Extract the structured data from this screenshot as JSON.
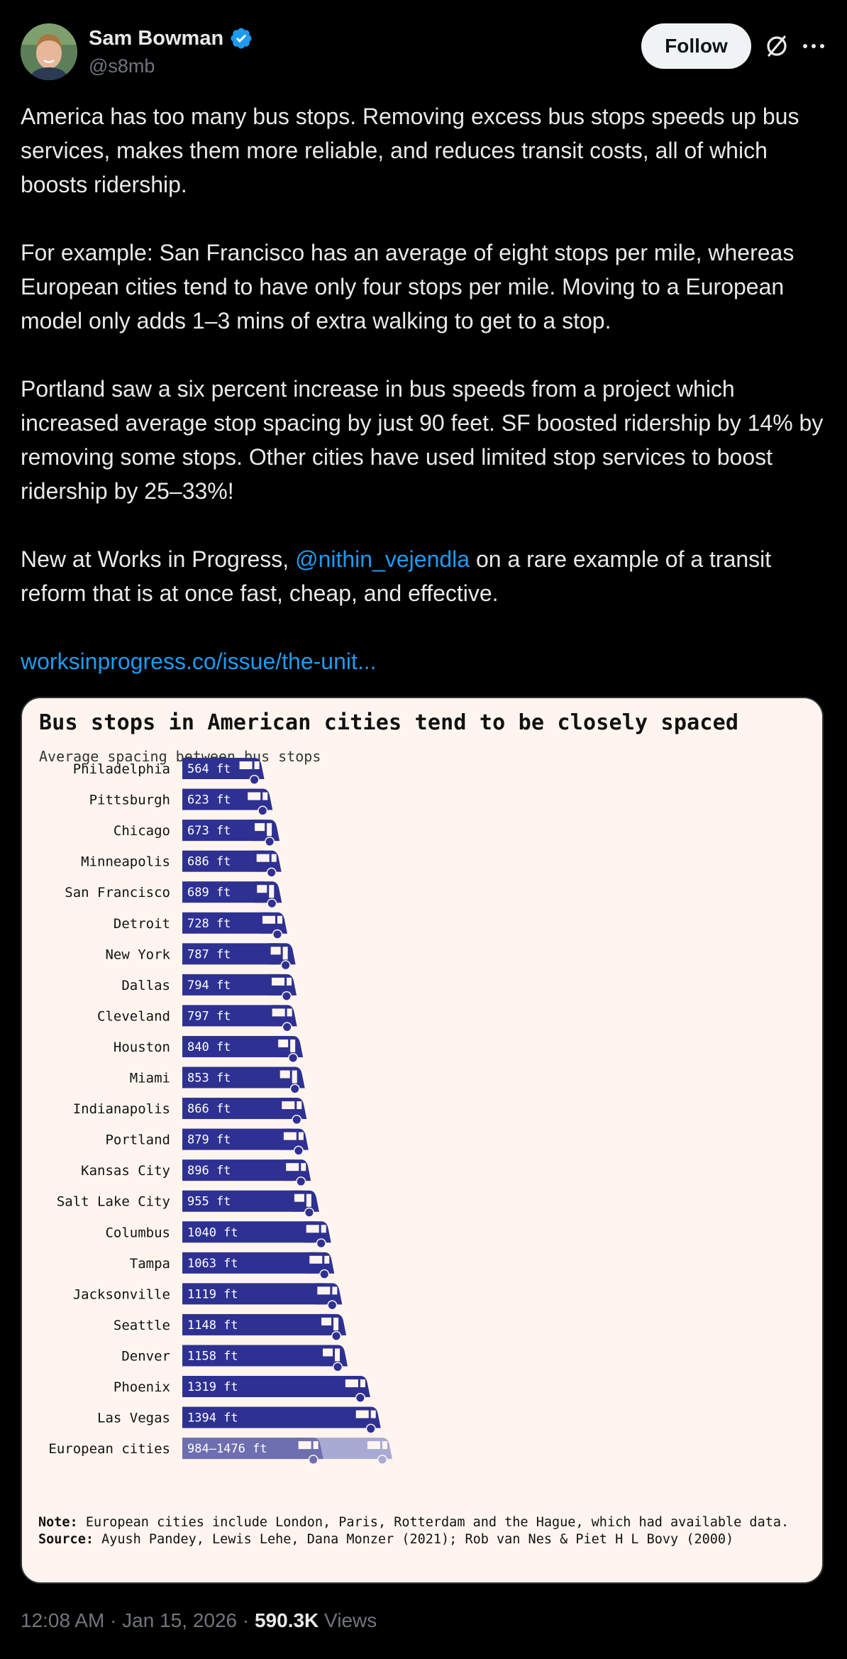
{
  "author": {
    "name": "Sam Bowman",
    "handle": "@s8mb",
    "verified_color": "#1d9bf0"
  },
  "actions": {
    "follow_label": "Follow",
    "grok_icon": "grok-icon",
    "more_icon": "more-icon"
  },
  "tweet": {
    "p1": "America has too many bus stops. Removing excess bus stops speeds up bus services, makes them more reliable, and reduces transit costs, all of which boosts ridership.",
    "p2": "For example: San Francisco has an average of eight stops per mile, whereas European cities tend to have only four stops per mile. Moving to a European model only adds 1–3 mins of extra walking to get to a stop.",
    "p3": "Portland saw a six percent increase in bus speeds from a project which increased average stop spacing by just 90 feet. SF boosted ridership by 14% by removing some stops. Other cities have used limited stop services to boost ridership by 25–33%!",
    "p4_before": "New at Works in Progress, ",
    "p4_mention": "@nithin_vejendla",
    "p4_after": " on a rare example of a transit reform that is at once fast, cheap, and effective.",
    "link": "worksinprogress.co/issue/the-unit..."
  },
  "chart_data": {
    "type": "bar",
    "title": "Bus stops in American cities tend to be closely spaced",
    "subtitle": "Average spacing between bus stops",
    "unit": "ft",
    "bar_color": "#2e3192",
    "range_color": "#6e6fb0",
    "range_light_color": "#a9aad4",
    "categories": [
      "Philadelphia",
      "Pittsburgh",
      "Chicago",
      "Minneapolis",
      "San Francisco",
      "Detroit",
      "New York",
      "Dallas",
      "Cleveland",
      "Houston",
      "Miami",
      "Indianapolis",
      "Portland",
      "Kansas City",
      "Salt Lake City",
      "Columbus",
      "Tampa",
      "Jacksonville",
      "Seattle",
      "Denver",
      "Phoenix",
      "Las Vegas"
    ],
    "values": [
      564,
      623,
      673,
      686,
      689,
      728,
      787,
      794,
      797,
      840,
      853,
      866,
      879,
      896,
      955,
      1040,
      1063,
      1119,
      1148,
      1158,
      1319,
      1394
    ],
    "labels": [
      "564 ft",
      "623 ft",
      "673 ft",
      "686 ft",
      "689 ft",
      "728 ft",
      "787 ft",
      "794 ft",
      "797 ft",
      "840 ft",
      "853 ft",
      "866 ft",
      "879 ft",
      "896 ft",
      "955 ft",
      "1040 ft",
      "1063 ft",
      "1119 ft",
      "1148 ft",
      "1158 ft",
      "1319 ft",
      "1394 ft"
    ],
    "range": {
      "category": "European cities",
      "min": 984,
      "max": 1476,
      "label": "984–1476 ft"
    },
    "note_label": "Note:",
    "note": " European cities include London, Paris, Rotterdam and the Hague, which had available data.",
    "source_label": "Source:",
    "source": " Ayush Pandey, Lewis Lehe, Dana Monzer (2021); Rob van Nes & Piet H L Bovy (2000)"
  },
  "meta": {
    "time": "12:08 AM · Jan 15, 2026 · ",
    "views_count": "590.3K",
    "views_label": " Views"
  }
}
